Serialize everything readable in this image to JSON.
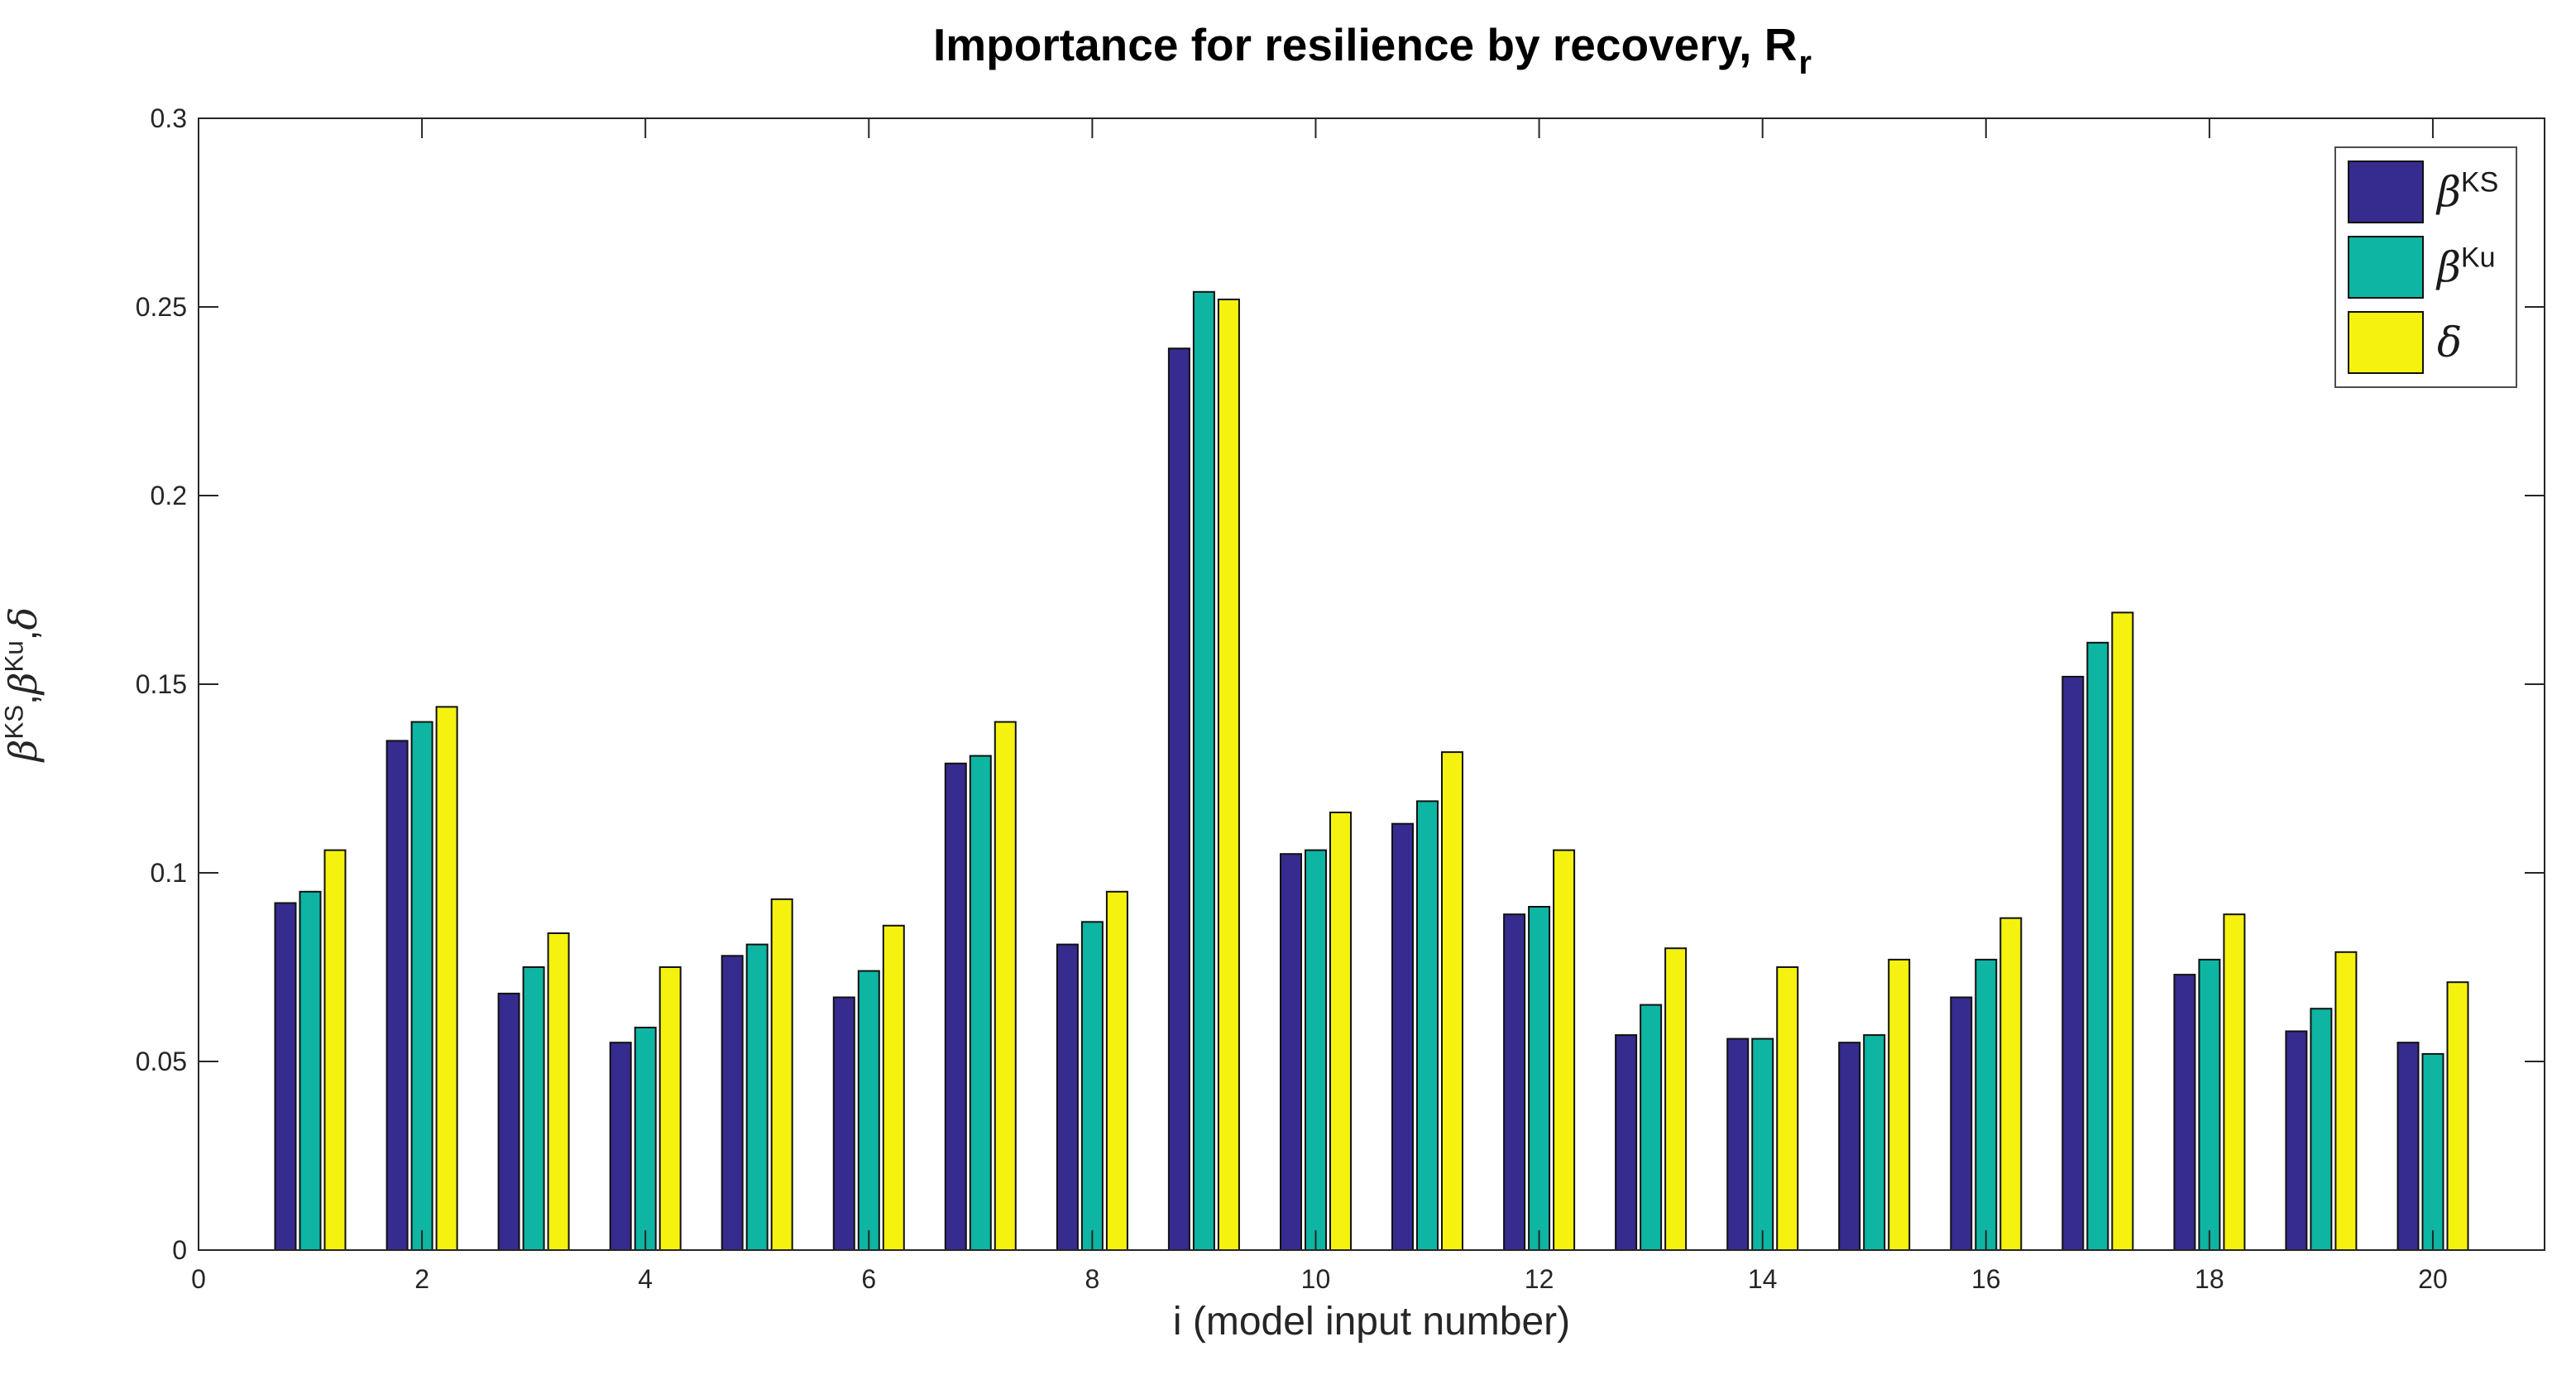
{
  "chart_data": {
    "type": "bar",
    "title_main": "Importance for resilience by recovery, R",
    "title_sub": "r",
    "title_full": "Importance for resilience by recovery, R_r",
    "xlabel": "i (model input number)",
    "ylabel_separator": ",",
    "x": [
      1,
      2,
      3,
      4,
      5,
      6,
      7,
      8,
      9,
      10,
      11,
      12,
      13,
      14,
      15,
      16,
      17,
      18,
      19,
      20
    ],
    "xlim": [
      0,
      21
    ],
    "ylim": [
      0,
      0.3
    ],
    "xticks": [
      0,
      2,
      4,
      6,
      8,
      10,
      12,
      14,
      16,
      18,
      20
    ],
    "yticks": [
      0,
      0.05,
      0.1,
      0.15,
      0.2,
      0.25,
      0.3
    ],
    "ytick_labels": [
      "0",
      "0.05",
      "0.1",
      "0.15",
      "0.2",
      "0.25",
      "0.3"
    ],
    "grid": false,
    "legend_position": "top-right",
    "axis_color": "#262626",
    "bar_edge_color": "#111111",
    "series": [
      {
        "name": "beta-KS",
        "label_base": "β",
        "label_sup": "KS",
        "color": "#362b8e",
        "values": [
          0.092,
          0.135,
          0.068,
          0.055,
          0.078,
          0.067,
          0.129,
          0.081,
          0.239,
          0.105,
          0.113,
          0.089,
          0.057,
          0.056,
          0.055,
          0.067,
          0.152,
          0.073,
          0.058,
          0.055
        ]
      },
      {
        "name": "beta-Ku",
        "label_base": "β",
        "label_sup": "Ku",
        "color": "#0db5a2",
        "values": [
          0.095,
          0.14,
          0.075,
          0.059,
          0.081,
          0.074,
          0.131,
          0.087,
          0.254,
          0.106,
          0.119,
          0.091,
          0.065,
          0.056,
          0.057,
          0.077,
          0.161,
          0.077,
          0.064,
          0.052
        ]
      },
      {
        "name": "delta",
        "label_base": "δ",
        "label_sup": "",
        "color": "#f5f20f",
        "values": [
          0.106,
          0.144,
          0.084,
          0.075,
          0.093,
          0.086,
          0.14,
          0.095,
          0.252,
          0.116,
          0.132,
          0.106,
          0.08,
          0.075,
          0.077,
          0.088,
          0.169,
          0.089,
          0.079,
          0.071
        ]
      }
    ]
  }
}
